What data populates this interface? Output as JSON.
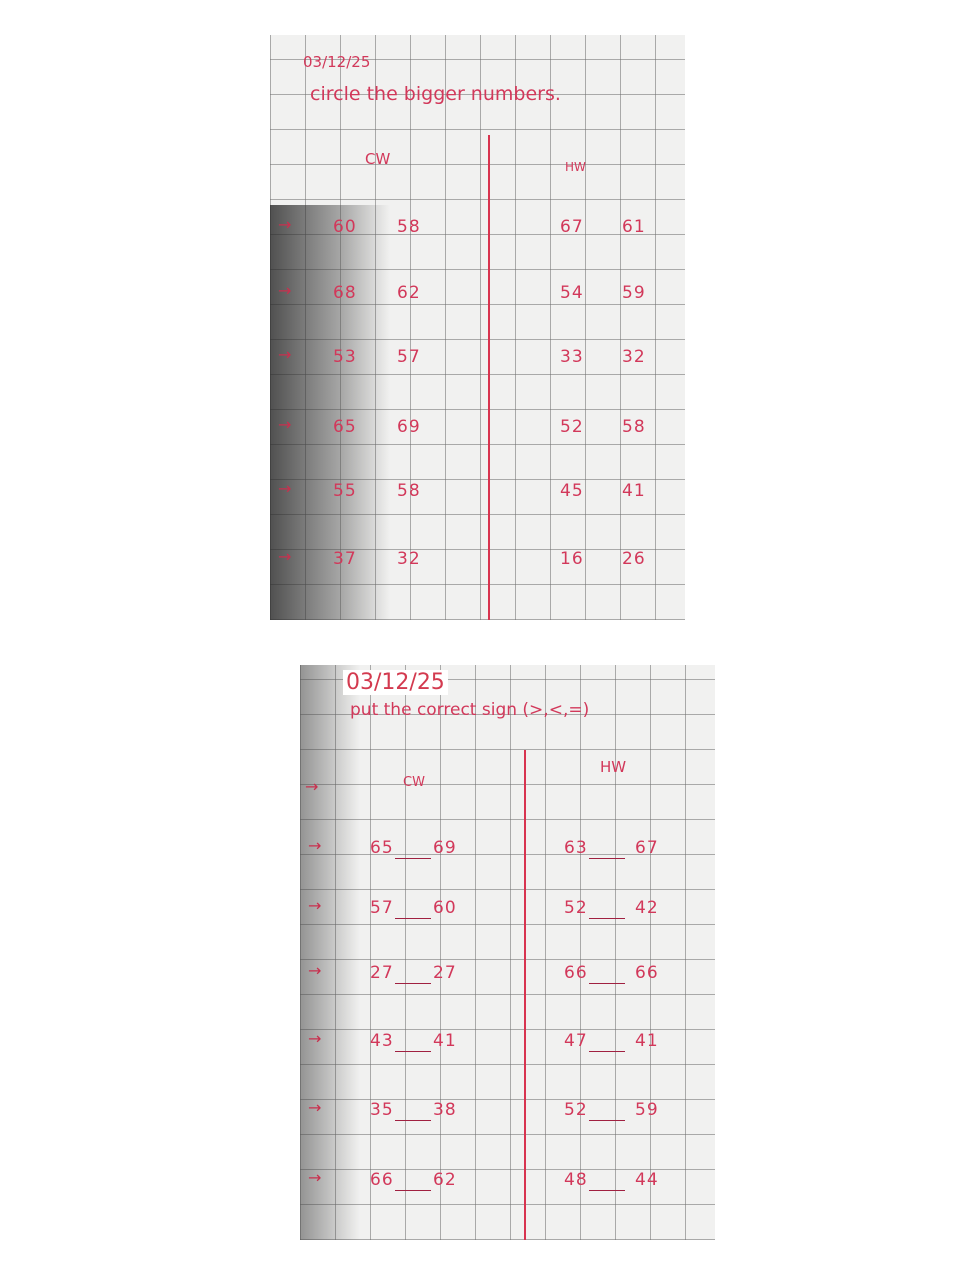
{
  "page1": {
    "date": "03/12/25",
    "instruction": "circle the bigger numbers.",
    "cw_label": "CW",
    "hw_label": "HW",
    "cw_rows": [
      [
        "60",
        "58"
      ],
      [
        "68",
        "62"
      ],
      [
        "53",
        "57"
      ],
      [
        "65",
        "69"
      ],
      [
        "55",
        "58"
      ],
      [
        "37",
        "32"
      ]
    ],
    "hw_rows": [
      [
        "67",
        "61"
      ],
      [
        "54",
        "59"
      ],
      [
        "33",
        "32"
      ],
      [
        "52",
        "58"
      ],
      [
        "45",
        "41"
      ],
      [
        "16",
        "26"
      ]
    ]
  },
  "page2": {
    "date": "03/12/25",
    "instruction": "put the correct sign (>,<,=)",
    "cw_label": "CW",
    "hw_label": "HW",
    "cw_rows": [
      [
        "65",
        "69"
      ],
      [
        "57",
        "60"
      ],
      [
        "27",
        "27"
      ],
      [
        "43",
        "41"
      ],
      [
        "35",
        "38"
      ],
      [
        "66",
        "62"
      ]
    ],
    "hw_rows": [
      [
        "63",
        "67"
      ],
      [
        "52",
        "42"
      ],
      [
        "66",
        "66"
      ],
      [
        "47",
        "41"
      ],
      [
        "52",
        "59"
      ],
      [
        "48",
        "44"
      ]
    ]
  },
  "colors": {
    "ink": "#d2385a",
    "paper": "#f1f1f0",
    "grid": "#8a8a8a"
  }
}
